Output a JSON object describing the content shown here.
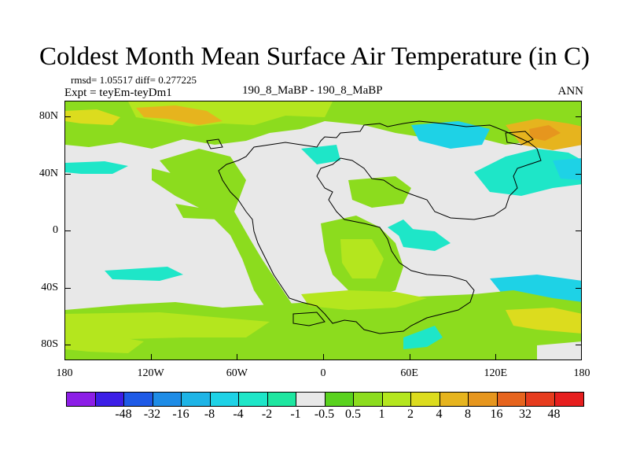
{
  "title": "Coldest Month Mean Surface Air Temperature (in C)",
  "stats": {
    "rmsd_text": "rmsd= 1.05517 diff= 0.277225"
  },
  "expt_text": "Expt = teyEm-teyDm1",
  "case_text": "190_8_MaBP - 190_8_MaBP",
  "season_text": "ANN",
  "axes": {
    "y_labels": [
      "80N",
      "40N",
      "0",
      "40S",
      "80S"
    ],
    "x_labels": [
      "180",
      "120W",
      "60W",
      "0",
      "60E",
      "120E",
      "180"
    ]
  },
  "colorbar": {
    "colors": [
      "#8c1ee6",
      "#3c1ee6",
      "#1e5ae6",
      "#1e8ce6",
      "#1eb4e6",
      "#1ed2e6",
      "#1ee6c8",
      "#1ee6a0",
      "#e8e8e8",
      "#5ad21e",
      "#8cdc1e",
      "#b4e61e",
      "#dcdc1e",
      "#e6b41e",
      "#e6961e",
      "#e6641e",
      "#e63c1e",
      "#e61e1e"
    ],
    "labels": [
      "-48",
      "-32",
      "-16",
      "-8",
      "-4",
      "-2",
      "-1",
      "-0.5",
      "0.5",
      "1",
      "2",
      "4",
      "8",
      "16",
      "32",
      "48"
    ]
  }
}
